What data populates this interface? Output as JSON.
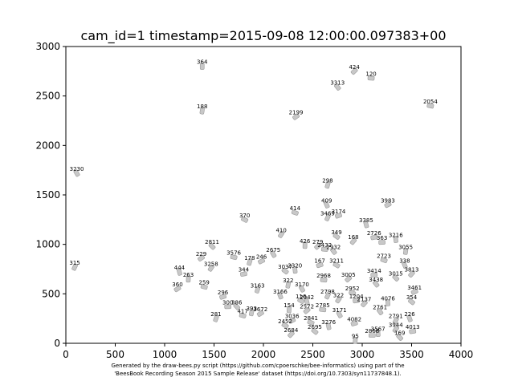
{
  "chart_data": {
    "type": "scatter",
    "title": "cam_id=1 timestamp=2015-09-08 12:00:00.097383+00",
    "xlabel": "",
    "ylabel": "",
    "xlim": [
      0,
      4000
    ],
    "ylim": [
      0,
      3000
    ],
    "xticks": [
      0,
      500,
      1000,
      1500,
      2000,
      2500,
      3000,
      3500,
      4000
    ],
    "yticks": [
      0,
      500,
      1000,
      1500,
      2000,
      2500,
      3000
    ],
    "grid": false,
    "footer": [
      "Generated by the draw-bees.py script (https://github.com/cpoerschke/bee-informatics) using part of the",
      "'BeesBook Recording Season 2015 Sample Release' dataset (https://doi.org/10.7303/syn11737848.1)."
    ],
    "points": [
      {
        "id": "364",
        "x": 1380,
        "y": 2800
      },
      {
        "id": "424",
        "x": 2920,
        "y": 2750
      },
      {
        "id": "120",
        "x": 3090,
        "y": 2680
      },
      {
        "id": "3313",
        "x": 2750,
        "y": 2590
      },
      {
        "id": "188",
        "x": 1380,
        "y": 2350
      },
      {
        "id": "2199",
        "x": 2330,
        "y": 2290
      },
      {
        "id": "2054",
        "x": 3690,
        "y": 2400
      },
      {
        "id": "3230",
        "x": 110,
        "y": 1720
      },
      {
        "id": "298",
        "x": 2650,
        "y": 1600
      },
      {
        "id": "3983",
        "x": 3260,
        "y": 1400
      },
      {
        "id": "414",
        "x": 2320,
        "y": 1320
      },
      {
        "id": "409",
        "x": 2640,
        "y": 1400
      },
      {
        "id": "3469",
        "x": 2650,
        "y": 1270
      },
      {
        "id": "3174",
        "x": 2760,
        "y": 1290
      },
      {
        "id": "370",
        "x": 1810,
        "y": 1250
      },
      {
        "id": "3385",
        "x": 3040,
        "y": 1200
      },
      {
        "id": "410",
        "x": 2180,
        "y": 1100
      },
      {
        "id": "2726",
        "x": 3120,
        "y": 1070
      },
      {
        "id": "349",
        "x": 2740,
        "y": 1080
      },
      {
        "id": "3216",
        "x": 3340,
        "y": 1050
      },
      {
        "id": "168",
        "x": 2910,
        "y": 1030
      },
      {
        "id": "363",
        "x": 3200,
        "y": 1020
      },
      {
        "id": "2811",
        "x": 1480,
        "y": 980
      },
      {
        "id": "426",
        "x": 2420,
        "y": 990
      },
      {
        "id": "279",
        "x": 2550,
        "y": 980
      },
      {
        "id": "2432",
        "x": 2620,
        "y": 950
      },
      {
        "id": "2932",
        "x": 2710,
        "y": 930
      },
      {
        "id": "3055",
        "x": 3440,
        "y": 930
      },
      {
        "id": "229",
        "x": 1370,
        "y": 860
      },
      {
        "id": "3576",
        "x": 1700,
        "y": 870
      },
      {
        "id": "2675",
        "x": 2100,
        "y": 900
      },
      {
        "id": "178",
        "x": 1860,
        "y": 820
      },
      {
        "id": "246",
        "x": 1980,
        "y": 830
      },
      {
        "id": "2723",
        "x": 3220,
        "y": 840
      },
      {
        "id": "338",
        "x": 3430,
        "y": 790
      },
      {
        "id": "315",
        "x": 90,
        "y": 770
      },
      {
        "id": "167",
        "x": 2570,
        "y": 790
      },
      {
        "id": "3211",
        "x": 2740,
        "y": 790
      },
      {
        "id": "444",
        "x": 1150,
        "y": 720
      },
      {
        "id": "3258",
        "x": 1470,
        "y": 760
      },
      {
        "id": "344",
        "x": 1800,
        "y": 700
      },
      {
        "id": "3037",
        "x": 2220,
        "y": 730
      },
      {
        "id": "2320",
        "x": 2320,
        "y": 740
      },
      {
        "id": "3813",
        "x": 3500,
        "y": 700
      },
      {
        "id": "3414",
        "x": 3120,
        "y": 690
      },
      {
        "id": "3015",
        "x": 3340,
        "y": 660
      },
      {
        "id": "263",
        "x": 1240,
        "y": 650
      },
      {
        "id": "3005",
        "x": 2860,
        "y": 650
      },
      {
        "id": "2968",
        "x": 2610,
        "y": 640
      },
      {
        "id": "3438",
        "x": 3140,
        "y": 600
      },
      {
        "id": "322",
        "x": 2250,
        "y": 590
      },
      {
        "id": "360",
        "x": 1130,
        "y": 550
      },
      {
        "id": "259",
        "x": 1400,
        "y": 570
      },
      {
        "id": "3170",
        "x": 2390,
        "y": 550
      },
      {
        "id": "3163",
        "x": 1940,
        "y": 540
      },
      {
        "id": "3461",
        "x": 3530,
        "y": 520
      },
      {
        "id": "2952",
        "x": 2900,
        "y": 510
      },
      {
        "id": "3166",
        "x": 2170,
        "y": 480
      },
      {
        "id": "2798",
        "x": 2650,
        "y": 480
      },
      {
        "id": "296",
        "x": 1590,
        "y": 470
      },
      {
        "id": "116",
        "x": 2380,
        "y": 430
      },
      {
        "id": "2042",
        "x": 2440,
        "y": 420
      },
      {
        "id": "322",
        "x": 2760,
        "y": 440
      },
      {
        "id": "1204",
        "x": 2940,
        "y": 430
      },
      {
        "id": "354",
        "x": 3500,
        "y": 420
      },
      {
        "id": "4076",
        "x": 3260,
        "y": 410
      },
      {
        "id": "2137",
        "x": 3020,
        "y": 400
      },
      {
        "id": "300",
        "x": 1640,
        "y": 370
      },
      {
        "id": "386",
        "x": 1730,
        "y": 370
      },
      {
        "id": "154",
        "x": 2260,
        "y": 340
      },
      {
        "id": "2572",
        "x": 2440,
        "y": 330
      },
      {
        "id": "2785",
        "x": 2600,
        "y": 340
      },
      {
        "id": "2761",
        "x": 3180,
        "y": 320
      },
      {
        "id": "393",
        "x": 1880,
        "y": 310
      },
      {
        "id": "3672",
        "x": 1970,
        "y": 300
      },
      {
        "id": "417",
        "x": 1790,
        "y": 280
      },
      {
        "id": "3171",
        "x": 2770,
        "y": 290
      },
      {
        "id": "281",
        "x": 1520,
        "y": 250
      },
      {
        "id": "3036",
        "x": 2290,
        "y": 230
      },
      {
        "id": "2841",
        "x": 2480,
        "y": 210
      },
      {
        "id": "226",
        "x": 3480,
        "y": 250
      },
      {
        "id": "2791",
        "x": 3340,
        "y": 230
      },
      {
        "id": "4082",
        "x": 2920,
        "y": 200
      },
      {
        "id": "2452",
        "x": 2220,
        "y": 180
      },
      {
        "id": "3276",
        "x": 2660,
        "y": 170
      },
      {
        "id": "3944",
        "x": 3340,
        "y": 140
      },
      {
        "id": "4013",
        "x": 3510,
        "y": 120
      },
      {
        "id": "2695",
        "x": 2520,
        "y": 120
      },
      {
        "id": "3567",
        "x": 3160,
        "y": 100
      },
      {
        "id": "2684",
        "x": 2280,
        "y": 90
      },
      {
        "id": "2868",
        "x": 3100,
        "y": 80
      },
      {
        "id": "169",
        "x": 3380,
        "y": 60
      },
      {
        "id": "95",
        "x": 2930,
        "y": 30
      }
    ]
  }
}
